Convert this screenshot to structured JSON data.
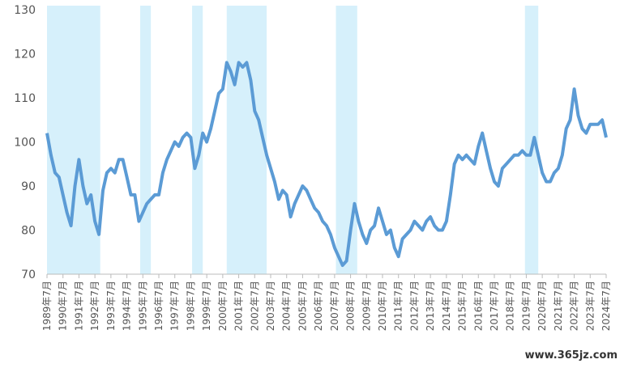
{
  "chart_data": {
    "type": "line",
    "x": [
      "1989-07",
      "1989-10",
      "1990-01",
      "1990-04",
      "1990-07",
      "1990-10",
      "1991-01",
      "1991-04",
      "1991-07",
      "1991-10",
      "1992-01",
      "1992-04",
      "1992-07",
      "1992-10",
      "1993-01",
      "1993-04",
      "1993-07",
      "1993-10",
      "1994-01",
      "1994-04",
      "1994-07",
      "1994-10",
      "1995-01",
      "1995-04",
      "1995-07",
      "1995-10",
      "1996-01",
      "1996-04",
      "1996-07",
      "1996-10",
      "1997-01",
      "1997-04",
      "1997-07",
      "1997-10",
      "1998-01",
      "1998-04",
      "1998-07",
      "1998-10",
      "1999-01",
      "1999-04",
      "1999-07",
      "1999-10",
      "2000-01",
      "2000-04",
      "2000-07",
      "2000-10",
      "2001-01",
      "2001-04",
      "2001-07",
      "2001-10",
      "2002-01",
      "2002-04",
      "2002-07",
      "2002-10",
      "2003-01",
      "2003-04",
      "2003-07",
      "2003-10",
      "2004-01",
      "2004-04",
      "2004-07",
      "2004-10",
      "2005-01",
      "2005-04",
      "2005-07",
      "2005-10",
      "2006-01",
      "2006-04",
      "2006-07",
      "2006-10",
      "2007-01",
      "2007-04",
      "2007-07",
      "2007-10",
      "2008-01",
      "2008-04",
      "2008-07",
      "2008-10",
      "2009-01",
      "2009-04",
      "2009-07",
      "2009-10",
      "2010-01",
      "2010-04",
      "2010-07",
      "2010-10",
      "2011-01",
      "2011-04",
      "2011-07",
      "2011-10",
      "2012-01",
      "2012-04",
      "2012-07",
      "2012-10",
      "2013-01",
      "2013-04",
      "2013-07",
      "2013-10",
      "2014-01",
      "2014-04",
      "2014-07",
      "2014-10",
      "2015-01",
      "2015-04",
      "2015-07",
      "2015-10",
      "2016-01",
      "2016-04",
      "2016-07",
      "2016-10",
      "2017-01",
      "2017-04",
      "2017-07",
      "2017-10",
      "2018-01",
      "2018-04",
      "2018-07",
      "2018-10",
      "2019-01",
      "2019-04",
      "2019-07",
      "2019-10",
      "2020-01",
      "2020-04",
      "2020-07",
      "2020-10",
      "2021-01",
      "2021-04",
      "2021-07",
      "2021-10",
      "2022-01",
      "2022-04",
      "2022-07",
      "2022-10",
      "2023-01",
      "2023-04",
      "2023-07",
      "2023-10",
      "2024-01",
      "2024-04",
      "2024-07"
    ],
    "series": [
      {
        "color": "#5b9bd5",
        "values": [
          102,
          97,
          93,
          92,
          88,
          84,
          81,
          90,
          96,
          90,
          86,
          88,
          82,
          79,
          89,
          93,
          94,
          93,
          96,
          96,
          92,
          88,
          88,
          82,
          84,
          86,
          87,
          88,
          88,
          93,
          96,
          98,
          100,
          99,
          101,
          102,
          101,
          94,
          97,
          102,
          100,
          103,
          107,
          111,
          112,
          118,
          116,
          113,
          118,
          117,
          118,
          114,
          107,
          105,
          101,
          97,
          94,
          91,
          87,
          89,
          88,
          83,
          86,
          88,
          90,
          89,
          87,
          85,
          84,
          82,
          81,
          79,
          76,
          74,
          72,
          73,
          80,
          86,
          82,
          79,
          77,
          80,
          81,
          85,
          82,
          79,
          80,
          76,
          74,
          78,
          79,
          80,
          82,
          81,
          80,
          82,
          83,
          81,
          80,
          80,
          82,
          88,
          95,
          97,
          96,
          97,
          96,
          95,
          99,
          102,
          98,
          94,
          91,
          90,
          94,
          95,
          96,
          97,
          97,
          98,
          97,
          97,
          101,
          97,
          93,
          91,
          91,
          93,
          94,
          97,
          103,
          105,
          112,
          106,
          103,
          102,
          104,
          104,
          104,
          105,
          101
        ]
      }
    ],
    "shaded_periods": [
      {
        "start": "1989-07",
        "end": "1992-11"
      },
      {
        "start": "1995-05",
        "end": "1996-01"
      },
      {
        "start": "1998-08",
        "end": "1999-04"
      },
      {
        "start": "2000-10",
        "end": "2003-04"
      },
      {
        "start": "2007-08",
        "end": "2008-12"
      },
      {
        "start": "2019-06",
        "end": "2020-04"
      }
    ],
    "shade_color": "#d6f0fb",
    "ylim": [
      70,
      130
    ],
    "yticks": [
      70,
      80,
      90,
      100,
      110,
      120,
      130
    ],
    "xticks": [
      {
        "value": "1989-07",
        "label": "1989年7月"
      },
      {
        "value": "1990-07",
        "label": "1990年7月"
      },
      {
        "value": "1991-07",
        "label": "1991年7月"
      },
      {
        "value": "1992-07",
        "label": "1992年7月"
      },
      {
        "value": "1993-07",
        "label": "1993年7月"
      },
      {
        "value": "1994-07",
        "label": "1994年7月"
      },
      {
        "value": "1995-07",
        "label": "1995年7月"
      },
      {
        "value": "1996-07",
        "label": "1996年7月"
      },
      {
        "value": "1997-07",
        "label": "1997年7月"
      },
      {
        "value": "1998-07",
        "label": "1998年7月"
      },
      {
        "value": "1999-07",
        "label": "1999年7月"
      },
      {
        "value": "2000-07",
        "label": "2000年7月"
      },
      {
        "value": "2001-07",
        "label": "2001年7月"
      },
      {
        "value": "2002-07",
        "label": "2002年7月"
      },
      {
        "value": "2003-07",
        "label": "2003年7月"
      },
      {
        "value": "2004-07",
        "label": "2004年7月"
      },
      {
        "value": "2005-07",
        "label": "2005年7月"
      },
      {
        "value": "2006-07",
        "label": "2006年7月"
      },
      {
        "value": "2007-07",
        "label": "2007年7月"
      },
      {
        "value": "2008-07",
        "label": "2008年7月"
      },
      {
        "value": "2009-07",
        "label": "2009年7月"
      },
      {
        "value": "2010-07",
        "label": "2010年7月"
      },
      {
        "value": "2011-07",
        "label": "2011年7月"
      },
      {
        "value": "2012-07",
        "label": "2012年7月"
      },
      {
        "value": "2013-07",
        "label": "2013年7月"
      },
      {
        "value": "2014-07",
        "label": "2014年7月"
      },
      {
        "value": "2015-07",
        "label": "2015年7月"
      },
      {
        "value": "2016-07",
        "label": "2016年7月"
      },
      {
        "value": "2017-07",
        "label": "2017年7月"
      },
      {
        "value": "2018-07",
        "label": "2018年7月"
      },
      {
        "value": "2019-07",
        "label": "2019年7月"
      },
      {
        "value": "2020-07",
        "label": "2020年7月"
      },
      {
        "value": "2021-07",
        "label": "2021年7月"
      },
      {
        "value": "2022-07",
        "label": "2022年7月"
      },
      {
        "value": "2023-07",
        "label": "2023年7月"
      },
      {
        "value": "2024-07",
        "label": "2024年7月"
      }
    ],
    "grid": false,
    "watermark": "www.365jz.com"
  }
}
